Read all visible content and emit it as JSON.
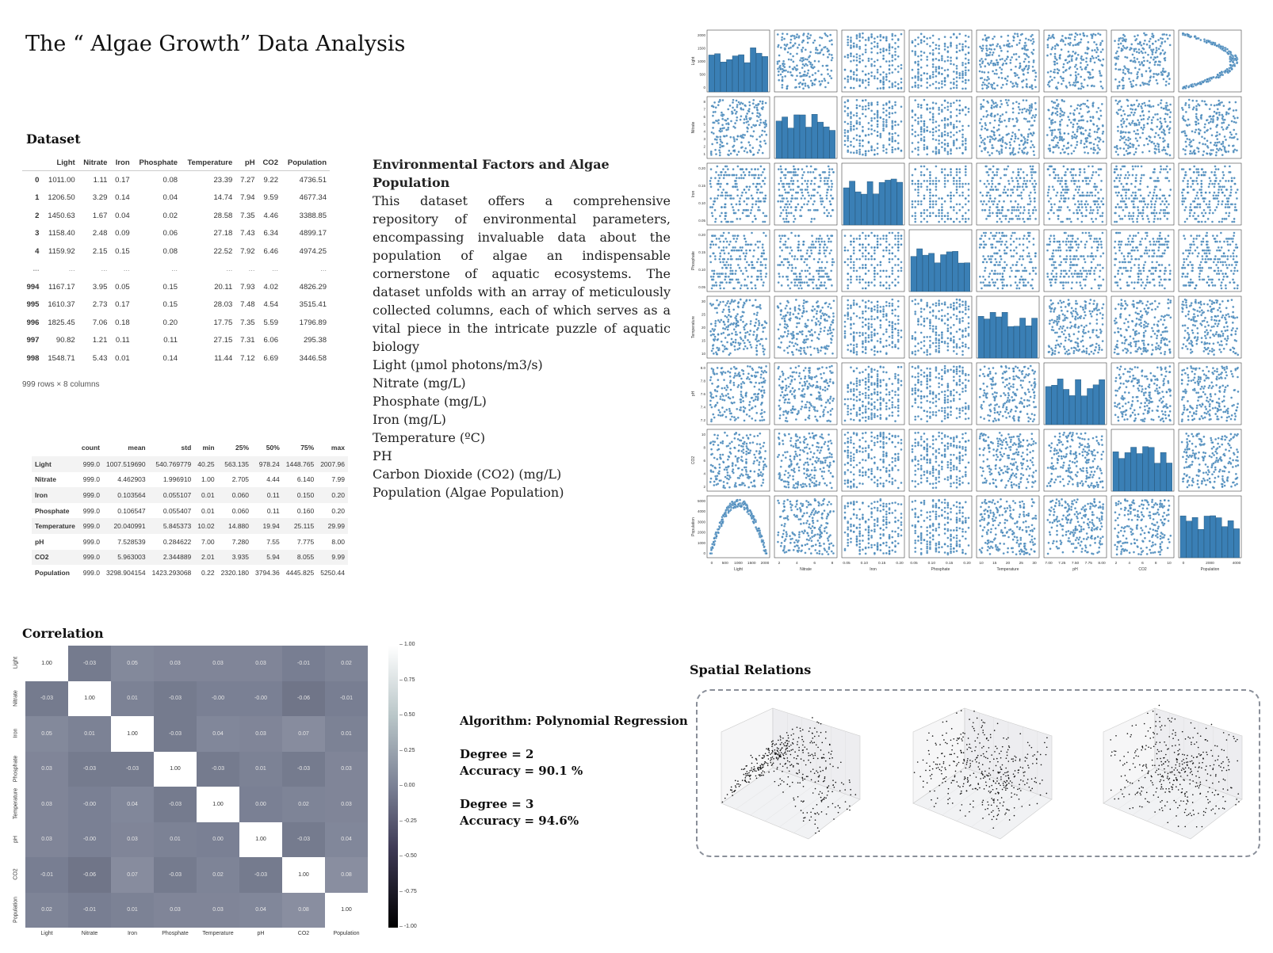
{
  "title": "The “ Algae Growth” Data Analysis",
  "dataset": {
    "heading": "Dataset",
    "columns": [
      "",
      "Light",
      "Nitrate",
      "Iron",
      "Phosphate",
      "Temperature",
      "pH",
      "CO2",
      "Population"
    ],
    "rows": [
      [
        "0",
        "1011.00",
        "1.11",
        "0.17",
        "0.08",
        "23.39",
        "7.27",
        "9.22",
        "4736.51"
      ],
      [
        "1",
        "1206.50",
        "3.29",
        "0.14",
        "0.04",
        "14.74",
        "7.94",
        "9.59",
        "4677.34"
      ],
      [
        "2",
        "1450.63",
        "1.67",
        "0.04",
        "0.02",
        "28.58",
        "7.35",
        "4.46",
        "3388.85"
      ],
      [
        "3",
        "1158.40",
        "2.48",
        "0.09",
        "0.06",
        "27.18",
        "7.43",
        "6.34",
        "4899.17"
      ],
      [
        "4",
        "1159.92",
        "2.15",
        "0.15",
        "0.08",
        "22.52",
        "7.92",
        "6.46",
        "4974.25"
      ],
      [
        "...",
        "...",
        "...",
        "...",
        "...",
        "...",
        "...",
        "...",
        "..."
      ],
      [
        "994",
        "1167.17",
        "3.95",
        "0.05",
        "0.15",
        "20.11",
        "7.93",
        "4.02",
        "4826.29"
      ],
      [
        "995",
        "1610.37",
        "2.73",
        "0.17",
        "0.15",
        "28.03",
        "7.48",
        "4.54",
        "3515.41"
      ],
      [
        "996",
        "1825.45",
        "7.06",
        "0.18",
        "0.20",
        "17.75",
        "7.35",
        "5.59",
        "1796.89"
      ],
      [
        "997",
        "90.82",
        "1.21",
        "0.11",
        "0.11",
        "27.15",
        "7.31",
        "6.06",
        "295.38"
      ],
      [
        "998",
        "1548.71",
        "5.43",
        "0.01",
        "0.14",
        "11.44",
        "7.12",
        "6.69",
        "3446.58"
      ]
    ],
    "footer": "999 rows × 8 columns"
  },
  "stats": {
    "columns": [
      "",
      "count",
      "mean",
      "std",
      "min",
      "25%",
      "50%",
      "75%",
      "max"
    ],
    "rows": [
      [
        "Light",
        "999.0",
        "1007.519690",
        "540.769779",
        "40.25",
        "563.135",
        "978.24",
        "1448.765",
        "2007.96"
      ],
      [
        "Nitrate",
        "999.0",
        "4.462903",
        "1.996910",
        "1.00",
        "2.705",
        "4.44",
        "6.140",
        "7.99"
      ],
      [
        "Iron",
        "999.0",
        "0.103564",
        "0.055107",
        "0.01",
        "0.060",
        "0.11",
        "0.150",
        "0.20"
      ],
      [
        "Phosphate",
        "999.0",
        "0.106547",
        "0.055407",
        "0.01",
        "0.060",
        "0.11",
        "0.160",
        "0.20"
      ],
      [
        "Temperature",
        "999.0",
        "20.040991",
        "5.845373",
        "10.02",
        "14.880",
        "19.94",
        "25.115",
        "29.99"
      ],
      [
        "pH",
        "999.0",
        "7.528539",
        "0.284622",
        "7.00",
        "7.280",
        "7.55",
        "7.775",
        "8.00"
      ],
      [
        "CO2",
        "999.0",
        "5.963003",
        "2.344889",
        "2.01",
        "3.935",
        "5.94",
        "8.055",
        "9.99"
      ],
      [
        "Population",
        "999.0",
        "3298.904154",
        "1423.293068",
        "0.22",
        "2320.180",
        "3794.36",
        "4445.825",
        "5250.44"
      ]
    ]
  },
  "description": {
    "heading": "Environmental Factors and Algae Population",
    "paragraph": "This dataset offers a comprehensive repository of environmental parameters, encompassing invaluable data about the population of algae an indispensable cornerstone of aquatic ecosystems. The dataset unfolds with an array of meticulously collected columns, each of which serves as a vital piece in the intricate puzzle of aquatic biology",
    "items": [
      "Light (µmol photons/m3/s)",
      "Nitrate (mg/L)",
      "Phosphate (mg/L)",
      "Iron (mg/L)",
      "Temperature (ºC)",
      "PH",
      "Carbon Dioxide (CO2) (mg/L)",
      "Population (Algae Population)"
    ]
  },
  "correlation": {
    "heading": "Correlation",
    "variables": [
      "Light",
      "Nitrate",
      "Iron",
      "Phosphate",
      "Temperature",
      "pH",
      "CO2",
      "Population"
    ],
    "matrix": [
      [
        "1.00",
        "-0.03",
        "0.05",
        "0.03",
        "0.03",
        "0.03",
        "-0.01",
        "0.02"
      ],
      [
        "-0.03",
        "1.00",
        "0.01",
        "-0.03",
        "-0.00",
        "-0.00",
        "-0.06",
        "-0.01"
      ],
      [
        "0.05",
        "0.01",
        "1.00",
        "-0.03",
        "0.04",
        "0.03",
        "0.07",
        "0.01"
      ],
      [
        "0.03",
        "-0.03",
        "-0.03",
        "1.00",
        "-0.03",
        "0.01",
        "-0.03",
        "0.03"
      ],
      [
        "0.03",
        "-0.00",
        "0.04",
        "-0.03",
        "1.00",
        "0.00",
        "0.02",
        "0.03"
      ],
      [
        "0.03",
        "-0.00",
        "0.03",
        "0.01",
        "0.00",
        "1.00",
        "-0.03",
        "0.04"
      ],
      [
        "-0.01",
        "-0.06",
        "0.07",
        "-0.03",
        "0.02",
        "-0.03",
        "1.00",
        "0.08"
      ],
      [
        "0.02",
        "-0.01",
        "0.01",
        "0.03",
        "0.03",
        "0.04",
        "0.08",
        "1.00"
      ]
    ],
    "colorbar_ticks": [
      "1.00",
      "0.75",
      "0.50",
      "0.25",
      "0.00",
      "-0.25",
      "-0.50",
      "-0.75",
      "-1.00"
    ]
  },
  "algorithm": {
    "title": "Algorithm: Polynomial Regression",
    "results": [
      {
        "degree": "Degree = 2",
        "accuracy": "Accuracy = 90.1 %"
      },
      {
        "degree": "Degree = 3",
        "accuracy": "Accuracy = 94.6%"
      }
    ]
  },
  "spatial": {
    "heading": "Spatial Relations"
  },
  "pairplot": {
    "variables": [
      "Light",
      "Nitrate",
      "Iron",
      "Phosphate",
      "Temperature",
      "pH",
      "CO2",
      "Population"
    ],
    "color": "#3a7fb5",
    "x_ticks": [
      [
        "0",
        "500",
        "1000",
        "1500",
        "2000"
      ],
      [
        "2",
        "4",
        "6",
        "8"
      ],
      [
        "0.05",
        "0.10",
        "0.15",
        "0.20"
      ],
      [
        "0.05",
        "0.10",
        "0.15",
        "0.20"
      ],
      [
        "10",
        "15",
        "20",
        "25",
        "30"
      ],
      [
        "7.00",
        "7.25",
        "7.50",
        "7.75",
        "8.00"
      ],
      [
        "2",
        "4",
        "6",
        "8",
        "10"
      ],
      [
        "0",
        "2000",
        "4000"
      ]
    ],
    "y_ticks": [
      [
        "0",
        "500",
        "1000",
        "1500",
        "2000"
      ],
      [
        "1",
        "2",
        "3",
        "4",
        "5",
        "6",
        "7",
        "8"
      ],
      [
        "0.05",
        "0.10",
        "0.15",
        "0.20"
      ],
      [
        "0.05",
        "0.10",
        "0.15",
        "0.20"
      ],
      [
        "10",
        "15",
        "20",
        "25",
        "30"
      ],
      [
        "7.2",
        "7.4",
        "7.6",
        "7.8",
        "8.0"
      ],
      [
        "2",
        "4",
        "6",
        "8",
        "10"
      ],
      [
        "0",
        "1000",
        "2000",
        "3000",
        "4000",
        "5000"
      ]
    ]
  }
}
